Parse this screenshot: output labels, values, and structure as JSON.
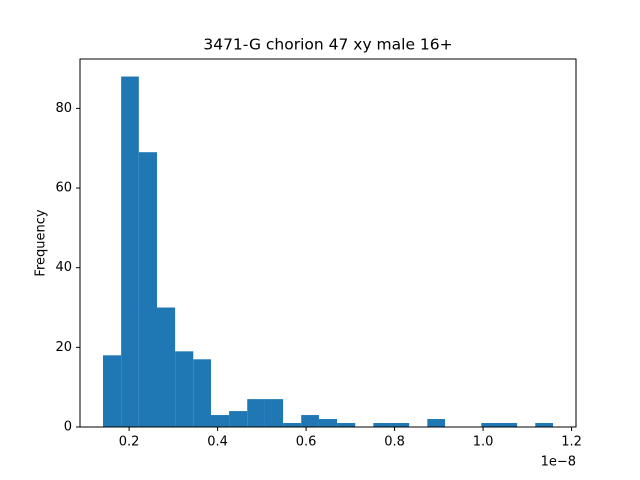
{
  "chart_data": {
    "type": "histogram",
    "title": "3471-G chorion 47 xy male 16+",
    "y_label": "Frequency",
    "x_offset_label": "1e−8",
    "bins": [
      0.141,
      0.182,
      0.222,
      0.263,
      0.304,
      0.345,
      0.385,
      0.426,
      0.467,
      0.507,
      0.548,
      0.589,
      0.629,
      0.67,
      0.711,
      0.752,
      0.792,
      0.833,
      0.874,
      0.914,
      0.955,
      0.996,
      1.036,
      1.077,
      1.118,
      1.158
    ],
    "values": [
      18,
      88,
      69,
      30,
      19,
      17,
      3,
      4,
      7,
      7,
      1,
      3,
      2,
      1,
      0,
      1,
      1,
      0,
      2,
      0,
      0,
      1,
      1,
      0,
      1
    ],
    "color": "#1f77b4",
    "xlim": [
      0.089,
      1.21
    ],
    "xticks": [
      0.2,
      0.4,
      0.6,
      0.8,
      {
        "value": 1,
        "label": "1.0"
      },
      1.2
    ],
    "ylim": [
      0,
      92.4
    ],
    "yticks": [
      0,
      20,
      40,
      60,
      80
    ]
  }
}
